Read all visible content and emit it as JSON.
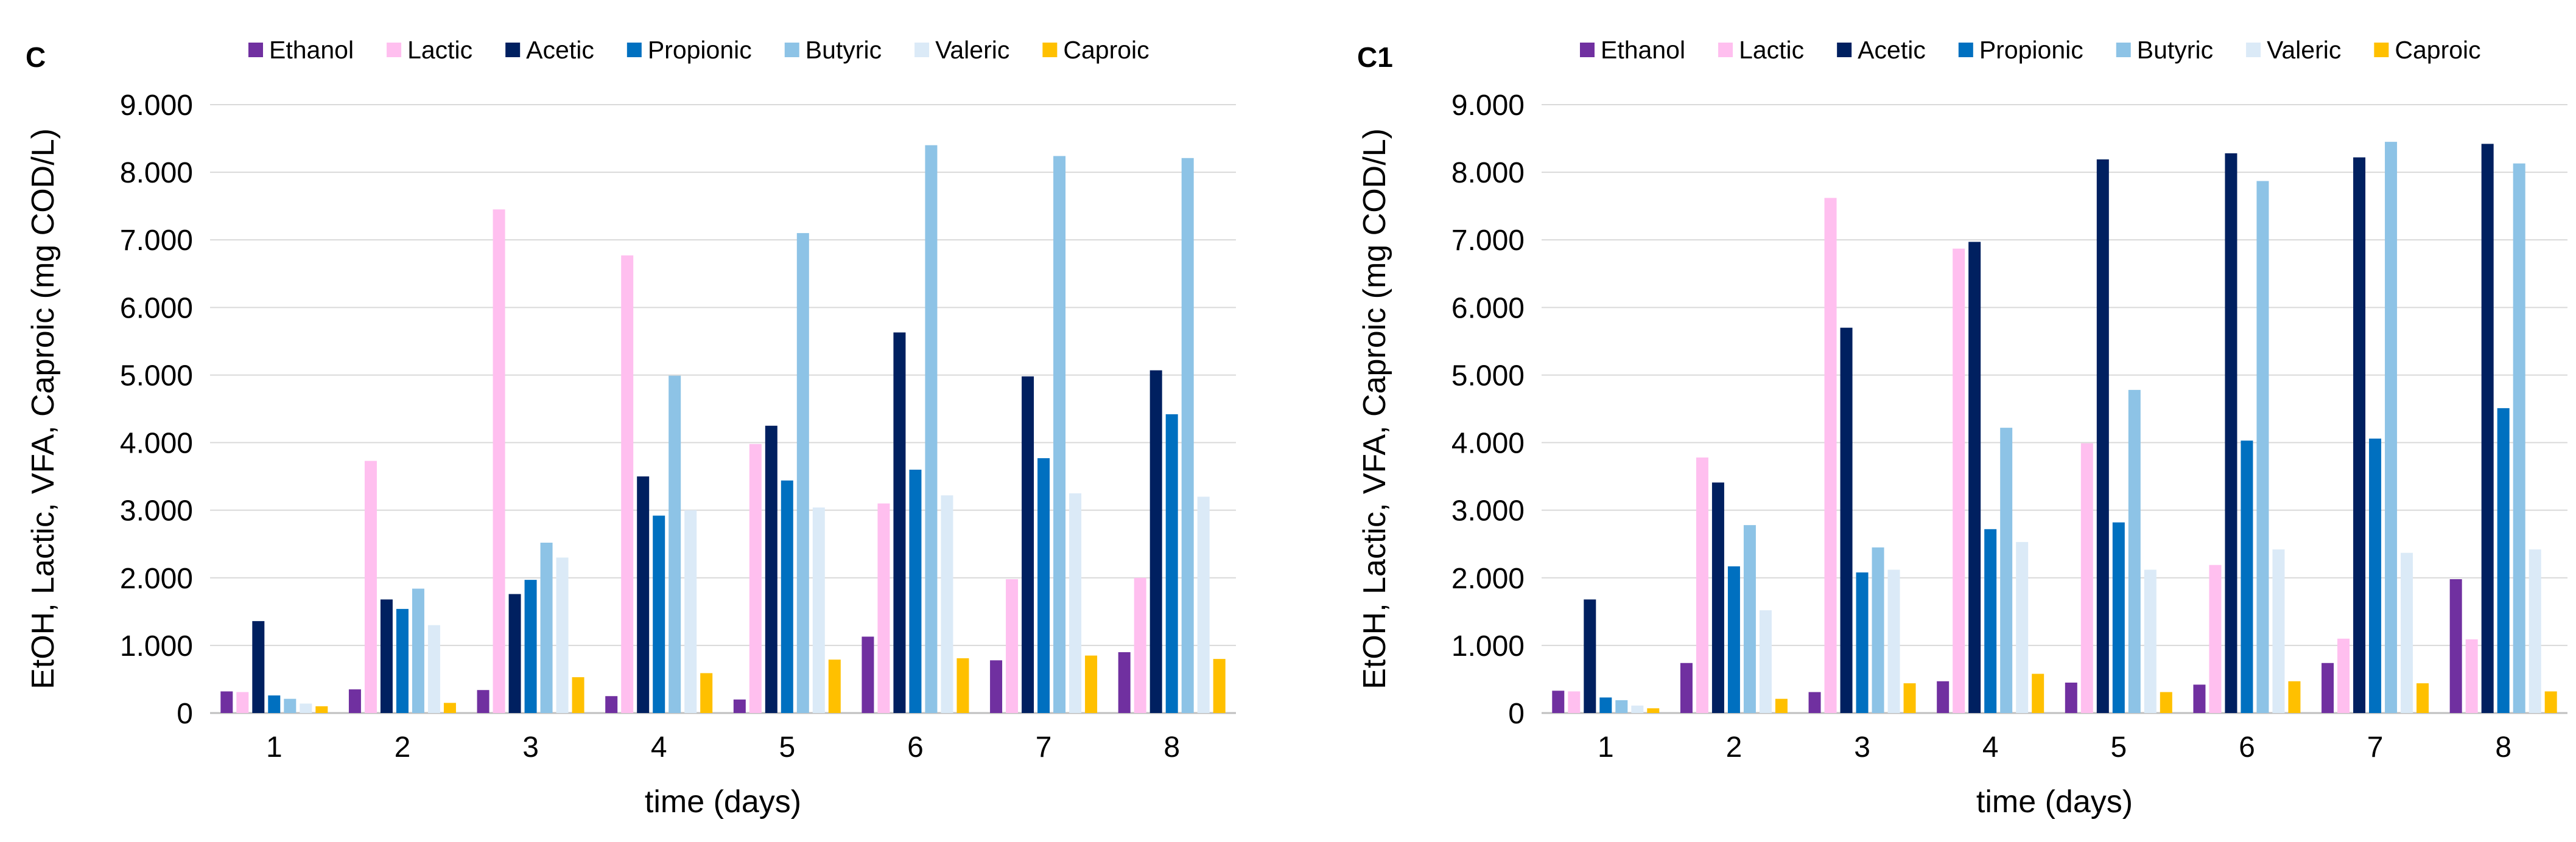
{
  "chart_data": [
    {
      "panel_label": "C",
      "type": "bar",
      "ylabel": "EtOH, Lactic, VFA, Caproic (mg COD/L)",
      "xlabel": "time (days)",
      "ylim": [
        0,
        9000
      ],
      "yticks": [
        "0",
        "1.000",
        "2.000",
        "3.000",
        "4.000",
        "5.000",
        "6.000",
        "7.000",
        "8.000",
        "9.000"
      ],
      "grid": "horizontal",
      "legend_position": "top",
      "categories": [
        "1",
        "2",
        "3",
        "4",
        "5",
        "6",
        "7",
        "8"
      ],
      "series": [
        {
          "name": "Ethanol",
          "color": "#7030a0",
          "values": [
            320,
            350,
            340,
            250,
            200,
            1130,
            780,
            900
          ]
        },
        {
          "name": "Lactic",
          "color": "#ffbfef",
          "values": [
            310,
            3730,
            7450,
            6770,
            3980,
            3100,
            1980,
            2000
          ]
        },
        {
          "name": "Acetic",
          "color": "#002060",
          "values": [
            1360,
            1680,
            1760,
            3500,
            4250,
            5630,
            4980,
            5070
          ]
        },
        {
          "name": "Propionic",
          "color": "#0070c0",
          "values": [
            260,
            1540,
            1970,
            2920,
            3440,
            3600,
            3770,
            4420
          ]
        },
        {
          "name": "Butyric",
          "color": "#8dc3e6",
          "values": [
            210,
            1840,
            2520,
            4990,
            7100,
            8400,
            8240,
            8210
          ]
        },
        {
          "name": "Valeric",
          "color": "#dbeaf7",
          "values": [
            140,
            1300,
            2300,
            3000,
            3040,
            3220,
            3250,
            3200
          ]
        },
        {
          "name": "Caproic",
          "color": "#ffc000",
          "values": [
            100,
            150,
            530,
            590,
            790,
            810,
            850,
            800
          ]
        }
      ]
    },
    {
      "panel_label": "C1",
      "type": "bar",
      "ylabel": "EtOH, Lactic, VFA, Caproic (mg COD/L)",
      "xlabel": "time (days)",
      "ylim": [
        0,
        9000
      ],
      "yticks": [
        "0",
        "1.000",
        "2.000",
        "3.000",
        "4.000",
        "5.000",
        "6.000",
        "7.000",
        "8.000",
        "9.000"
      ],
      "grid": "horizontal",
      "legend_position": "top",
      "categories": [
        "1",
        "2",
        "3",
        "4",
        "5",
        "6",
        "7",
        "8"
      ],
      "series": [
        {
          "name": "Ethanol",
          "color": "#7030a0",
          "values": [
            330,
            740,
            310,
            470,
            450,
            420,
            740,
            1980
          ]
        },
        {
          "name": "Lactic",
          "color": "#ffbfef",
          "values": [
            320,
            3780,
            7620,
            6870,
            3990,
            2190,
            1100,
            1090
          ]
        },
        {
          "name": "Acetic",
          "color": "#002060",
          "values": [
            1680,
            3410,
            5700,
            6970,
            8190,
            8280,
            8220,
            8420
          ]
        },
        {
          "name": "Propionic",
          "color": "#0070c0",
          "values": [
            230,
            2170,
            2080,
            2720,
            2820,
            4030,
            4060,
            4510
          ]
        },
        {
          "name": "Butyric",
          "color": "#8dc3e6",
          "values": [
            190,
            2780,
            2450,
            4220,
            4780,
            7870,
            8450,
            8130
          ]
        },
        {
          "name": "Valeric",
          "color": "#dbeaf7",
          "values": [
            110,
            1520,
            2120,
            2530,
            2120,
            2420,
            2370,
            2420
          ]
        },
        {
          "name": "Caproic",
          "color": "#ffc000",
          "values": [
            70,
            210,
            440,
            580,
            310,
            470,
            440,
            320
          ]
        }
      ]
    }
  ]
}
